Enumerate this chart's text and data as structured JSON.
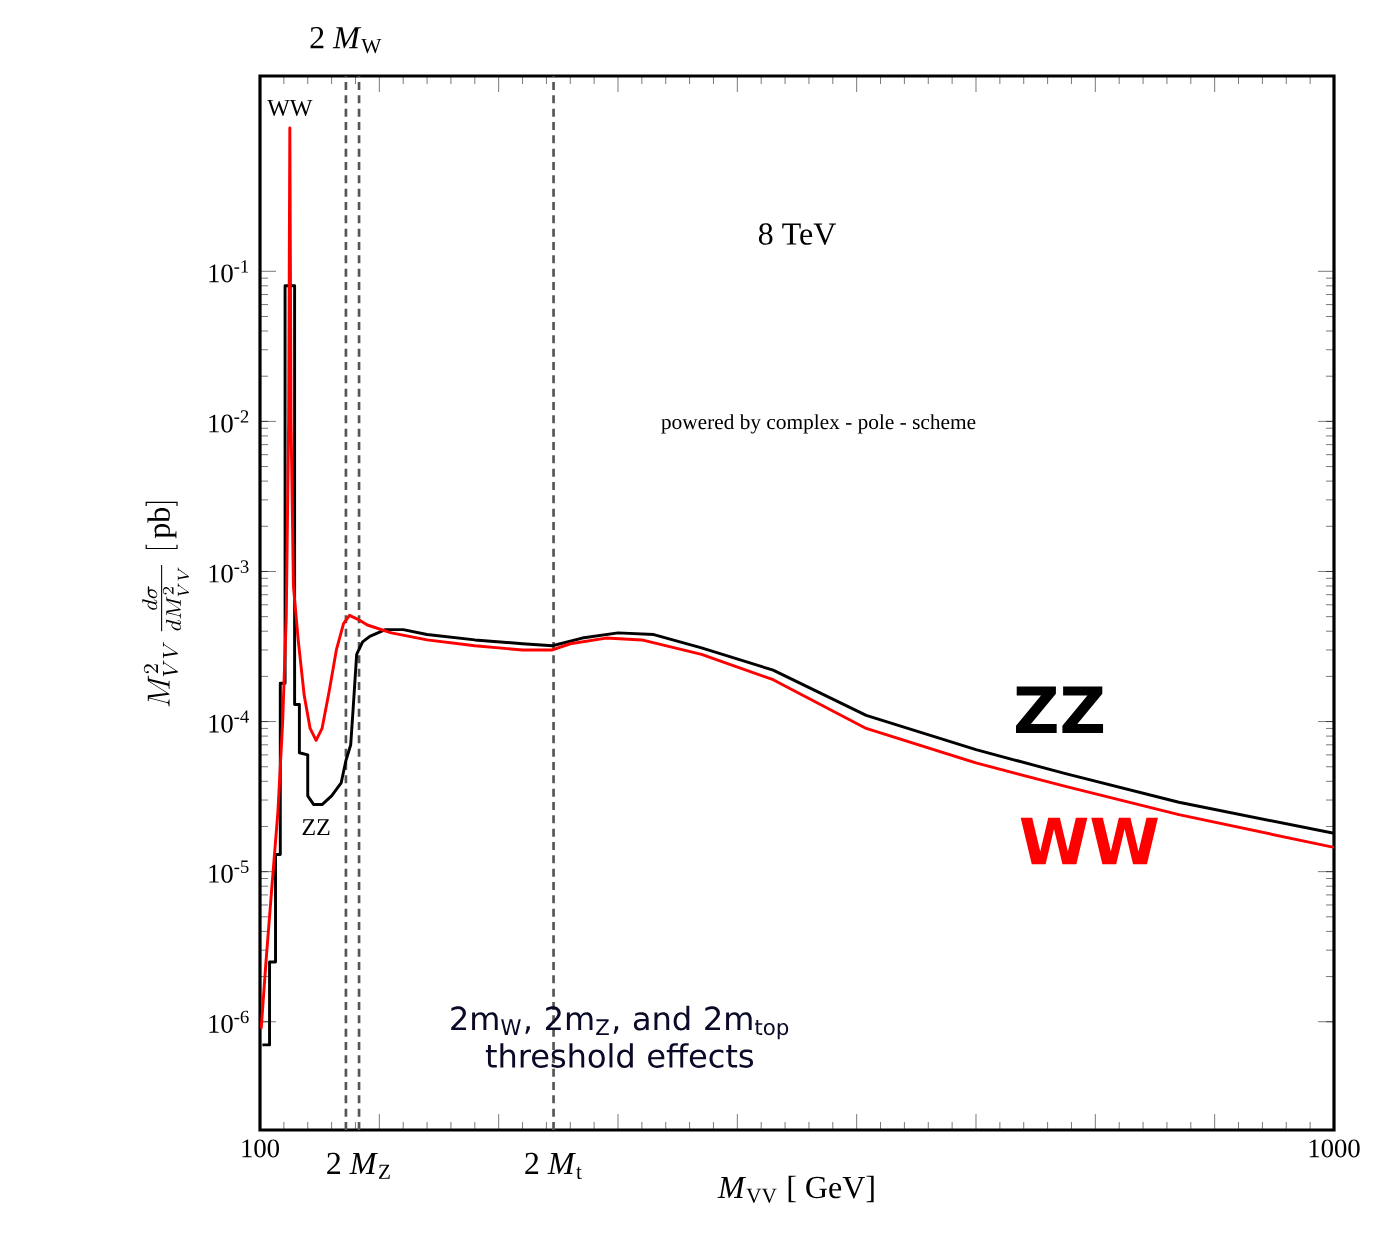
{
  "chart_data": {
    "type": "line",
    "xlabel": "*M*$_{VV}$ [ GeV]",
    "ylabel": "M^2_{VV}\\,\\frac{d\\sigma}{dM^2_{VV}}\\;[\\,\\mathrm{pb}]",
    "log": "y",
    "grid": false,
    "legend": false,
    "marker": "none",
    "line_style": "solid",
    "xlim": [
      100,
      1000
    ],
    "ylim": [
      1.9e-07,
      2
    ],
    "xticks": [
      100,
      {
        "value": 200,
        "label": null
      },
      {
        "value": 300,
        "label": null
      },
      {
        "value": 400,
        "label": null
      },
      {
        "value": 500,
        "label": null
      },
      {
        "value": 600,
        "label": null
      },
      {
        "value": 700,
        "label": null
      },
      {
        "value": 800,
        "label": null
      },
      {
        "value": 900,
        "label": null
      },
      1000
    ],
    "yticks": [
      {
        "value": 1e-06,
        "label": "10$^{-6}$"
      },
      {
        "value": 1e-05,
        "label": "10$^{-5}$"
      },
      {
        "value": 0.0001,
        "label": "10$^{-4}$"
      },
      {
        "value": 0.001,
        "label": "10$^{-3}$"
      },
      {
        "value": 0.01,
        "label": "10$^{-2}$"
      },
      {
        "value": 0.1,
        "label": "10$^{-1}$"
      }
    ],
    "series": [
      {
        "name": "ZZ",
        "color": "#000000",
        "x": [
          102,
          108,
          108,
          113,
          113,
          117,
          117,
          121,
          121,
          129,
          129,
          133,
          133,
          140,
          140,
          145,
          152,
          160,
          168,
          172,
          176,
          178,
          181,
          186,
          192,
          205,
          220,
          240,
          280,
          320,
          345,
          370,
          400,
          430,
          470,
          530,
          608,
          700,
          775,
          870,
          1000
        ],
        "values": [
          7e-07,
          7e-07,
          2.5e-06,
          2.5e-06,
          1.3e-05,
          1.3e-05,
          0.00018,
          0.00018,
          0.08,
          0.08,
          0.00013,
          0.00013,
          6.2e-05,
          6e-05,
          3.2e-05,
          2.8e-05,
          2.8e-05,
          3.2e-05,
          3.9e-05,
          5.5e-05,
          7e-05,
          0.00012,
          0.00028,
          0.00034,
          0.00037,
          0.00041,
          0.00041,
          0.00038,
          0.00035,
          0.00033,
          0.00032,
          0.00036,
          0.00039,
          0.00038,
          0.00031,
          0.00022,
          0.00011,
          6.5e-05,
          4.5e-05,
          2.9e-05,
          1.8e-05
        ]
      },
      {
        "name": "WW",
        "color": "#ff0000",
        "x": [
          101,
          105,
          110,
          115,
          119,
          122,
          124,
          125,
          126,
          128,
          132,
          137,
          142,
          147,
          152,
          158,
          164,
          170,
          175,
          182,
          190,
          210,
          240,
          280,
          320,
          345,
          360,
          390,
          420,
          470,
          530,
          608,
          700,
          775,
          870,
          1000
        ],
        "values": [
          9e-07,
          2.5e-06,
          8e-06,
          2.5e-05,
          0.0001,
          0.0005,
          0.01,
          0.9,
          0.01,
          0.0008,
          0.00035,
          0.00015,
          9e-05,
          7.5e-05,
          9e-05,
          0.00016,
          0.0003,
          0.00045,
          0.00051,
          0.00048,
          0.00044,
          0.00039,
          0.00035,
          0.00032,
          0.0003,
          0.0003,
          0.00033,
          0.00036,
          0.00035,
          0.00028,
          0.00019,
          9e-05,
          5.3e-05,
          3.7e-05,
          2.4e-05,
          1.45e-05
        ]
      }
    ],
    "ref_lines": [
      {
        "axis": "x",
        "value": 172,
        "label": "2 *M*$_{W}$",
        "color": "#555555",
        "line_style": "dashed"
      },
      {
        "axis": "x",
        "value": 183,
        "label": "2 *M*$_{Z}$",
        "color": "#555555",
        "line_style": "dashed"
      },
      {
        "axis": "x",
        "value": 346,
        "label": "2 *M*$_{t}$",
        "color": "#555555",
        "line_style": "dashed"
      }
    ],
    "annotations": [
      {
        "text": "WW",
        "x": 125,
        "y": 0.9
      },
      {
        "text": "ZZ",
        "x": 147,
        "y": 2.8e-05
      },
      "8 TeV",
      "powered by complex - pole - scheme",
      "2m$_{W}$, 2m$_{Z}$, and 2m$_{top}$ threshold effects"
    ]
  }
}
